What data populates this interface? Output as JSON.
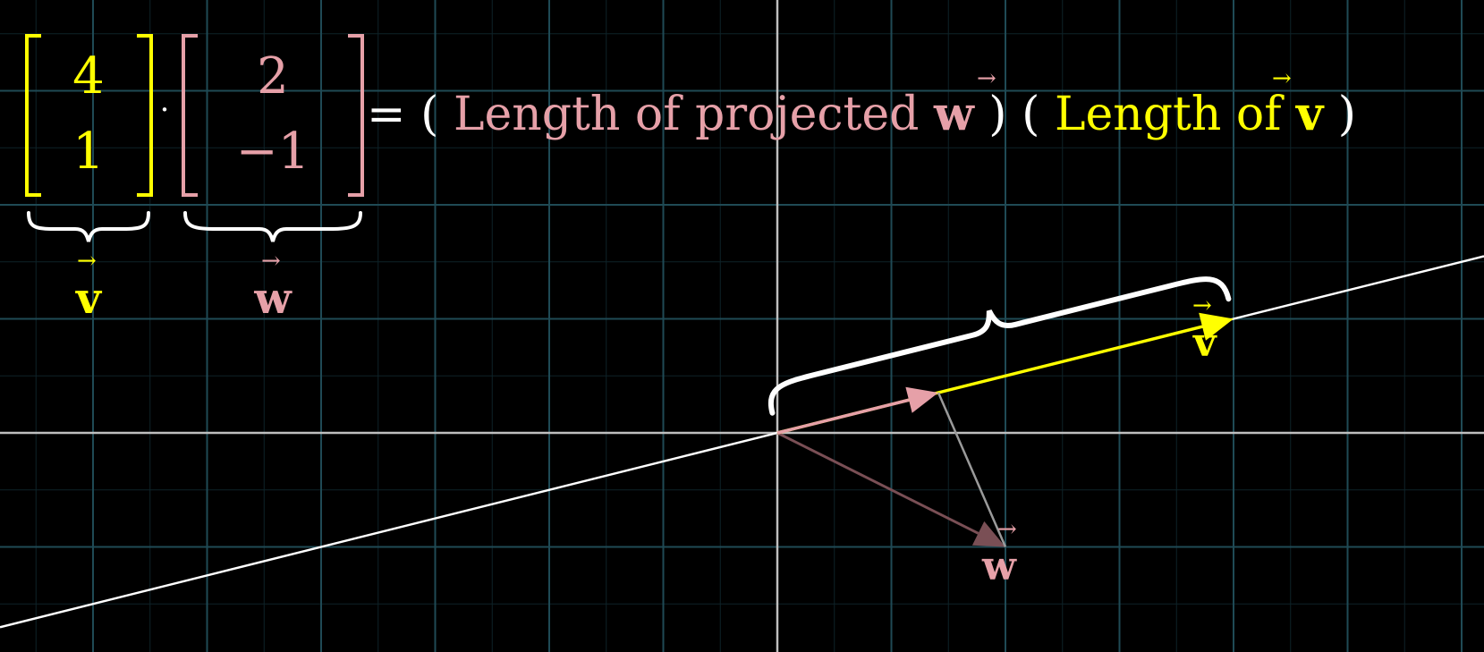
{
  "colors": {
    "background": "#000000",
    "grid_major": "#1f4a55",
    "grid_minor": "#0e2328",
    "axis": "#bfbfbf",
    "v_color": "#ffff00",
    "w_color": "#e6a0a8",
    "w_faded": "#7a4f55",
    "line_color": "#ffffff",
    "brace_color": "#ffffff"
  },
  "vectors": {
    "v": [
      4,
      1
    ],
    "w": [
      2,
      -1
    ],
    "projected_w": [
      1.4118,
      0.3529
    ]
  },
  "icons": [
    "arrow-head-icon",
    "curly-brace-icon"
  ],
  "equation": {
    "v_entries": [
      "4",
      "1"
    ],
    "w_entries": [
      "2",
      "−1"
    ],
    "dot": "·",
    "equals": "=",
    "open_paren_1": "(",
    "text_projected": "Length of projected ",
    "close_paren_1": ")",
    "open_paren_2": "(",
    "text_length_v": "Length of ",
    "close_paren_2": ")"
  },
  "labels": {
    "v_symbol": "v",
    "w_symbol": "w",
    "arrow_glyph": "→"
  }
}
